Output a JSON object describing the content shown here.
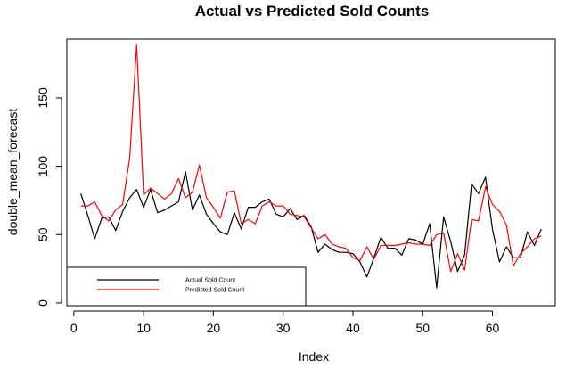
{
  "chart_data": {
    "type": "line",
    "title": "Actual vs Predicted Sold Counts",
    "xlabel": "Index",
    "ylabel": "double_mean_forecast",
    "xlim": [
      -1,
      69
    ],
    "ylim": [
      -2,
      193
    ],
    "x_ticks": [
      0,
      10,
      20,
      30,
      40,
      50,
      60
    ],
    "y_ticks": [
      0,
      50,
      100,
      150
    ],
    "grid": false,
    "legend_position": "bottom-left",
    "series": [
      {
        "name": "Actual Sold Count",
        "color": "#000000",
        "x": [
          1,
          2,
          3,
          4,
          5,
          6,
          7,
          8,
          9,
          10,
          11,
          12,
          13,
          14,
          15,
          16,
          17,
          18,
          19,
          20,
          21,
          22,
          23,
          24,
          25,
          26,
          27,
          28,
          29,
          30,
          31,
          32,
          33,
          34,
          35,
          36,
          37,
          38,
          39,
          40,
          41,
          42,
          43,
          44,
          45,
          46,
          47,
          48,
          49,
          50,
          51,
          52,
          53,
          54,
          55,
          56,
          57,
          58,
          59,
          60,
          61,
          62,
          63,
          64,
          65,
          66,
          67
        ],
        "values": [
          80,
          64,
          47,
          62,
          63,
          53,
          67,
          77,
          83,
          70,
          83,
          66,
          68,
          71,
          74,
          96,
          68,
          79,
          65,
          58,
          52,
          50,
          66,
          54,
          70,
          70,
          74,
          76,
          65,
          63,
          69,
          61,
          64,
          56,
          37,
          43,
          39,
          37,
          37,
          36,
          30,
          19,
          33,
          48,
          40,
          40,
          35,
          47,
          46,
          43,
          58,
          11,
          63,
          45,
          23,
          35,
          87,
          80,
          92,
          54,
          30,
          41,
          33,
          33,
          52,
          42,
          54
        ]
      },
      {
        "name": "Predicted Sold Count",
        "color": "#ff0000",
        "x": [
          1,
          2,
          3,
          4,
          5,
          6,
          7,
          8,
          9,
          10,
          11,
          12,
          13,
          14,
          15,
          16,
          17,
          18,
          19,
          20,
          21,
          22,
          23,
          24,
          25,
          26,
          27,
          28,
          29,
          30,
          31,
          32,
          33,
          34,
          35,
          36,
          37,
          38,
          39,
          40,
          41,
          42,
          43,
          44,
          45,
          46,
          47,
          48,
          49,
          50,
          51,
          52,
          53,
          54,
          55,
          56,
          57,
          58,
          59,
          60,
          61,
          62,
          63,
          64,
          65,
          66,
          67
        ],
        "values": [
          71,
          71,
          74,
          64,
          60,
          68,
          72,
          106,
          189,
          79,
          84,
          80,
          76,
          80,
          91,
          77,
          81,
          101,
          77,
          70,
          62,
          81,
          82,
          58,
          61,
          58,
          71,
          74,
          71,
          71,
          65,
          64,
          63,
          55,
          47,
          50,
          43,
          41,
          40,
          33,
          31,
          41,
          32,
          42,
          42,
          42,
          43,
          44,
          43,
          43,
          42,
          50,
          51,
          23,
          36,
          24,
          61,
          60,
          85,
          72,
          67,
          57,
          27,
          36,
          41,
          47,
          49
        ]
      }
    ]
  }
}
